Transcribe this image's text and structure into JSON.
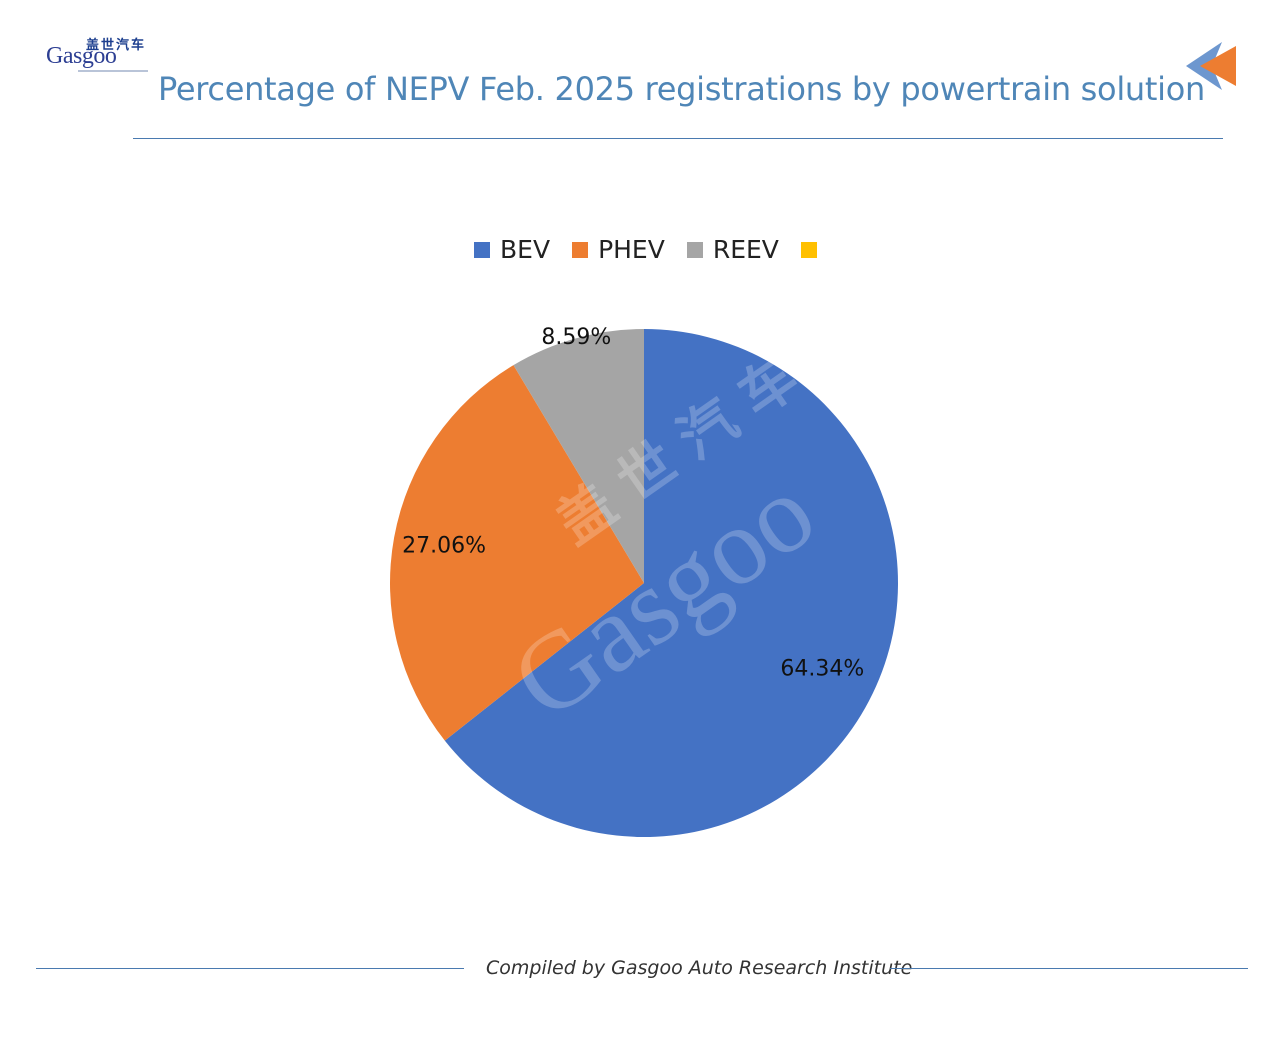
{
  "brand": {
    "logo_cn": "盖世汽车",
    "logo_en": "Gasgoo",
    "watermark_cn": "盖世汽车",
    "watermark_en": "Gasgoo",
    "colors": {
      "accent_blue": "#4f86b7",
      "arrow_blue": "#6d97cf",
      "arrow_orange": "#ed7d31"
    }
  },
  "header": {
    "title": "Percentage of NEPV Feb. 2025 registrations by powertrain solution",
    "corner_icon": "back-arrow-icon"
  },
  "footer": {
    "caption": "Compiled by Gasgoo Auto Research Institute"
  },
  "chart_data": {
    "type": "pie",
    "title": "Percentage of NEPV Feb. 2025 registrations by powertrain solution",
    "legend_position": "top",
    "categories": [
      "BEV",
      "PHEV",
      "REEV",
      ""
    ],
    "values": [
      64.34,
      27.06,
      8.59,
      0
    ],
    "labels": [
      "64.34%",
      "27.06%",
      "8.59%",
      ""
    ],
    "colors": [
      "#4472c4",
      "#ed7d31",
      "#a5a5a5",
      "#ffc000"
    ]
  }
}
